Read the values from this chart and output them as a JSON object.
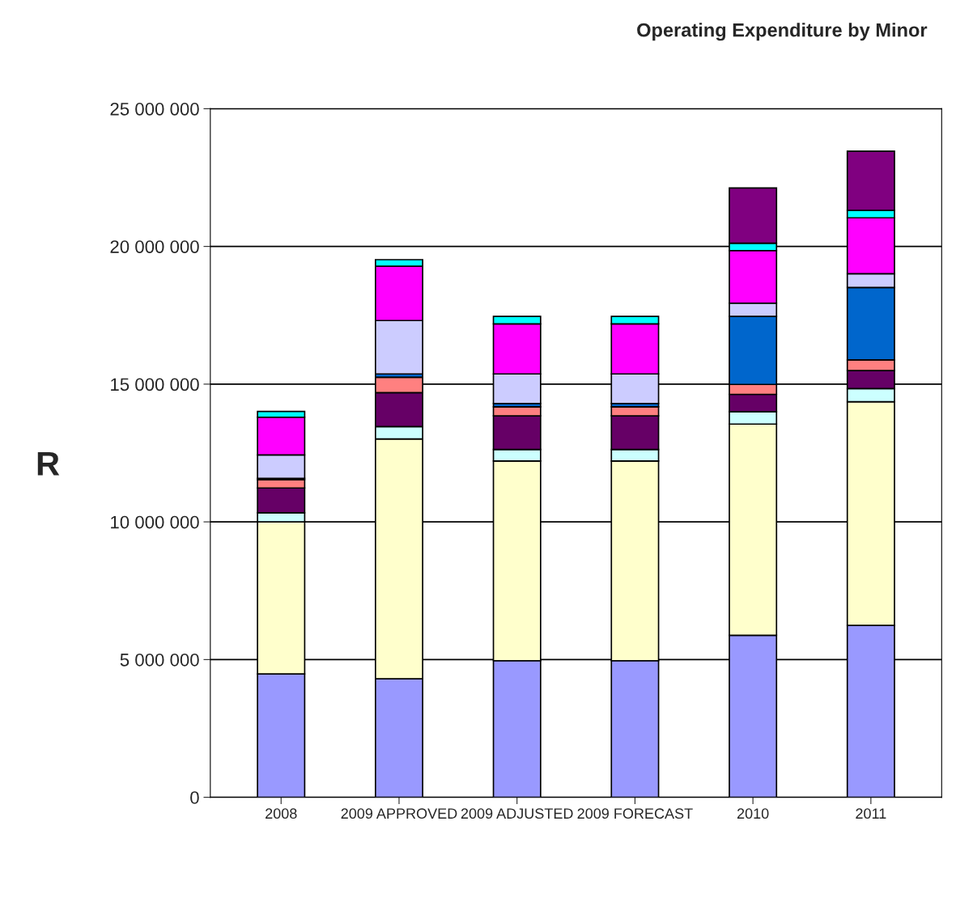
{
  "chart_data": {
    "type": "bar",
    "stacked": true,
    "title": "Operating Expenditure by Minor",
    "ylabel": "R",
    "categories": [
      "2008",
      "2009 APPROVED",
      "2009 ADJUSTED",
      "2009 FORECAST",
      "2010",
      "2011"
    ],
    "series": [
      {
        "color": "#9999ff",
        "values": [
          4480000,
          4300000,
          4960000,
          4960000,
          5880000,
          6240000
        ]
      },
      {
        "color": "#ffffcc",
        "values": [
          5520000,
          8710000,
          7250000,
          7250000,
          7670000,
          8120000
        ]
      },
      {
        "color": "#ccffff",
        "values": [
          330000,
          450000,
          420000,
          420000,
          450000,
          480000
        ]
      },
      {
        "color": "#660066",
        "values": [
          900000,
          1230000,
          1220000,
          1220000,
          630000,
          650000
        ]
      },
      {
        "color": "#ff8080",
        "values": [
          300000,
          560000,
          330000,
          330000,
          360000,
          390000
        ]
      },
      {
        "color": "#0066cc",
        "values": [
          50000,
          120000,
          120000,
          120000,
          2470000,
          2630000
        ]
      },
      {
        "color": "#ccccff",
        "values": [
          850000,
          1940000,
          1070000,
          1070000,
          480000,
          500000
        ]
      },
      {
        "color": "#ff00ff",
        "values": [
          1370000,
          1970000,
          1820000,
          1820000,
          1910000,
          2030000
        ]
      },
      {
        "color": "#00ffff",
        "values": [
          210000,
          240000,
          270000,
          270000,
          270000,
          270000
        ]
      },
      {
        "color": "#800080",
        "values": [
          0,
          0,
          0,
          0,
          2000000,
          2150000
        ]
      }
    ],
    "ylim": [
      0,
      25000000
    ],
    "yticks": [
      {
        "value": 0,
        "label": "0"
      },
      {
        "value": 5000000,
        "label": "5 000 000"
      },
      {
        "value": 10000000,
        "label": "10 000 000"
      },
      {
        "value": 15000000,
        "label": "15 000 000"
      },
      {
        "value": 20000000,
        "label": "20 000 000"
      },
      {
        "value": 25000000,
        "label": "25 000 000"
      }
    ],
    "grid": "y",
    "legend": false
  }
}
